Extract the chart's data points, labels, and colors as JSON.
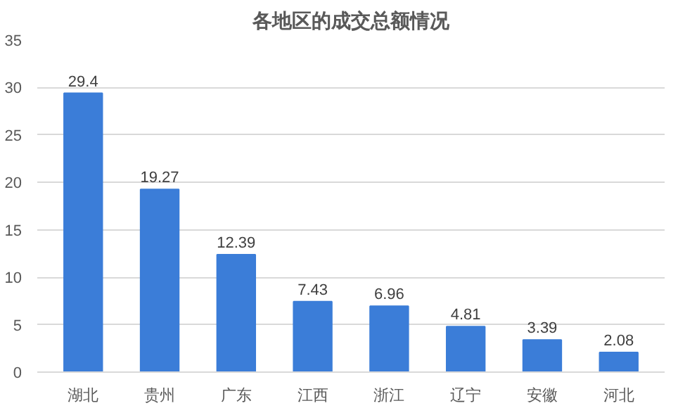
{
  "chart_data": {
    "type": "bar",
    "title": "各地区的成交总额情况",
    "categories": [
      "湖北",
      "贵州",
      "广东",
      "江西",
      "浙江",
      "辽宁",
      "安徽",
      "河北"
    ],
    "values": [
      29.4,
      19.27,
      12.39,
      7.43,
      6.96,
      4.81,
      3.39,
      2.08
    ],
    "color": "#3b7dd8",
    "ylim": [
      0,
      35
    ],
    "yticks": [
      0,
      5,
      10,
      15,
      20,
      25,
      30,
      35
    ],
    "grid": "y",
    "data_labels": true
  }
}
